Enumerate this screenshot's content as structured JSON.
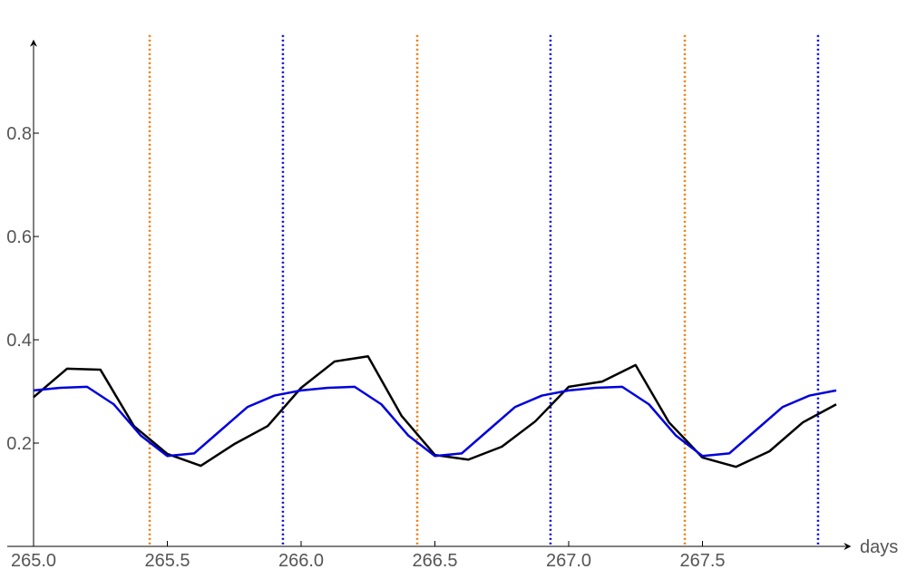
{
  "chart_data": {
    "type": "line",
    "x_label": "days",
    "xlim": [
      265,
      268.05
    ],
    "ylim": [
      0,
      0.99
    ],
    "xticks": [
      {
        "value": 265,
        "label": "265.0"
      },
      265.5,
      {
        "value": 266,
        "label": "266.0"
      },
      266.5,
      {
        "value": 267,
        "label": "267.0"
      },
      267.5
    ],
    "yticks": [
      0.2,
      0.4,
      0.6,
      0.8
    ],
    "series": [
      {
        "color": "#000000",
        "x": [
          265,
          265.125,
          265.25,
          265.375,
          265.5,
          265.625,
          265.75,
          265.875,
          266,
          266.125,
          266.25,
          266.375,
          266.5,
          266.625,
          266.75,
          266.875,
          267,
          267.125,
          267.25,
          267.375,
          267.5,
          267.625,
          267.75,
          267.875,
          268
        ],
        "values": [
          0.289,
          0.344,
          0.342,
          0.233,
          0.179,
          0.156,
          0.198,
          0.233,
          0.307,
          0.358,
          0.368,
          0.253,
          0.177,
          0.168,
          0.193,
          0.242,
          0.309,
          0.319,
          0.351,
          0.24,
          0.172,
          0.154,
          0.184,
          0.24,
          0.275
        ]
      },
      {
        "color": "#0000dd",
        "x": [
          265,
          265.1,
          265.2,
          265.3,
          265.4,
          265.5,
          265.6,
          265.7,
          265.8,
          265.9,
          266,
          266.1,
          266.2,
          266.3,
          266.4,
          266.5,
          266.6,
          266.7,
          266.8,
          266.9,
          267,
          267.1,
          267.2,
          267.3,
          267.4,
          267.5,
          267.6,
          267.7,
          267.8,
          267.9,
          268
        ],
        "values": [
          0.302,
          0.307,
          0.309,
          0.275,
          0.215,
          0.175,
          0.18,
          0.225,
          0.27,
          0.292,
          0.302,
          0.307,
          0.309,
          0.275,
          0.215,
          0.175,
          0.18,
          0.225,
          0.27,
          0.292,
          0.302,
          0.307,
          0.309,
          0.275,
          0.215,
          0.175,
          0.18,
          0.225,
          0.27,
          0.292,
          0.302
        ]
      }
    ],
    "vlines": [
      {
        "color": "#ee7700",
        "values": [
          265.434,
          266.434,
          267.434
        ]
      },
      {
        "color": "#0000dd",
        "values": [
          265.932,
          266.932,
          267.932
        ]
      }
    ]
  }
}
